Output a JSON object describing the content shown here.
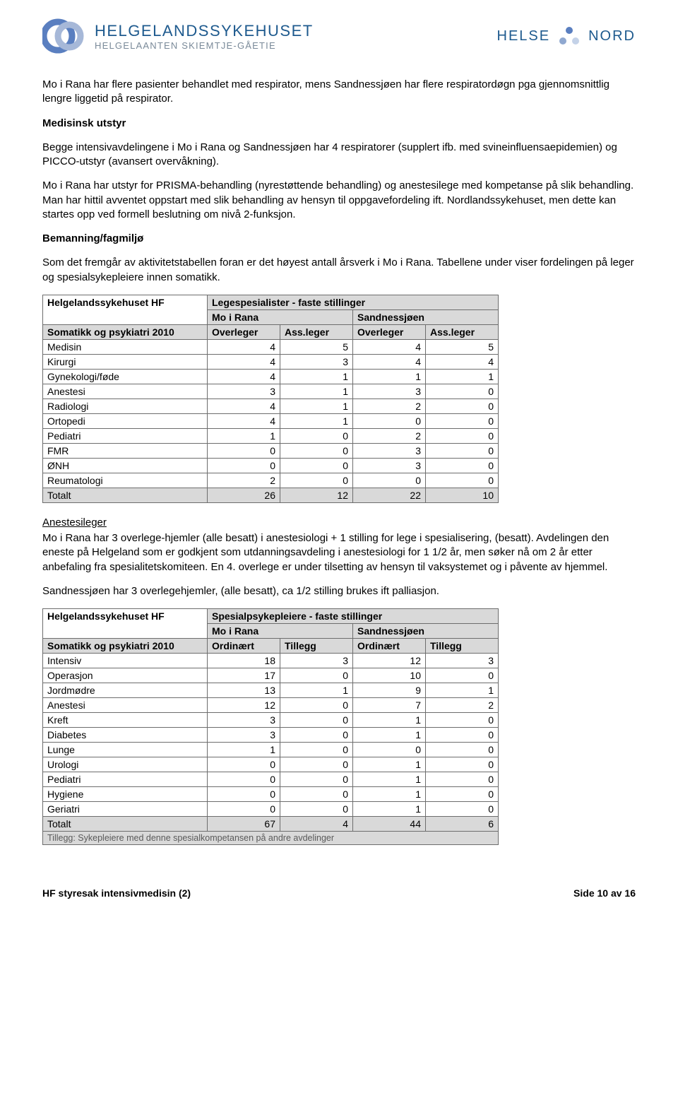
{
  "header": {
    "left_title": "HELGELANDSSYKEHUSET",
    "left_sub": "HELGELAANTEN SKIEMTJE-GÅETIE",
    "right_left": "HELSE",
    "right_right": "NORD",
    "logo_colors": {
      "outer": "#5a7fc0",
      "inner": "#a6b8d8"
    },
    "dot_colors": {
      "outer": "#5a7fc0",
      "mid": "#8fa8d0",
      "inner": "#c4d2e8"
    }
  },
  "paragraphs": {
    "p1": "Mo i Rana har flere pasienter behandlet med respirator, mens Sandnessjøen har flere respiratordøgn pga gjennomsnittlig lengre liggetid på respirator.",
    "h1": "Medisinsk utstyr",
    "p2": "Begge intensivavdelingene i Mo i Rana og Sandnessjøen har 4 respiratorer (supplert ifb. med svineinfluensaepidemien) og PICCO-utstyr (avansert overvåkning).",
    "p3": "Mo i Rana har utstyr for PRISMA-behandling (nyrestøttende behandling) og anestesilege med kompetanse på slik behandling. Man har hittil avventet oppstart med slik behandling av hensyn til oppgavefordeling ift. Nordlandssykehuset, men dette kan startes opp ved formell beslutning om nivå 2-funksjon.",
    "h2": "Bemanning/fagmiljø",
    "p4": "Som det fremgår av aktivitetstabellen foran er det høyest antall årsverk i Mo i Rana. Tabellene under viser fordelingen på leger og spesialsykepleiere innen somatikk.",
    "h3": "Anestesileger",
    "p5": "Mo i Rana har 3 overlege-hjemler (alle besatt) i anestesiologi + 1 stilling for lege i spesialisering, (besatt). Avdelingen den eneste på Helgeland som er godkjent som utdanningsavdeling i anestesiologi for 1 1/2 år, men søker nå om 2 år etter anbefaling fra spesialitetskomiteen. En 4. overlege er under tilsetting av hensyn til vaksystemet og i påvente av hjemmel.",
    "p6": "Sandnessjøen har 3 overlegehjemler, (alle besatt), ca 1/2 stilling brukes ift palliasjon."
  },
  "table1": {
    "top_header": "Legespesialister - faste stillinger",
    "left_header1": "Helgelandssykehuset HF",
    "left_header2": "Somatikk og psykiatri 2010",
    "loc1": "Mo i Rana",
    "loc2": "Sandnessjøen",
    "col1": "Overleger",
    "col2": "Ass.leger",
    "col3": "Overleger",
    "col4": "Ass.leger",
    "rows": [
      {
        "label": "Medisin",
        "v": [
          4,
          5,
          4,
          5
        ]
      },
      {
        "label": "Kirurgi",
        "v": [
          4,
          3,
          4,
          4
        ]
      },
      {
        "label": "Gynekologi/føde",
        "v": [
          4,
          1,
          1,
          1
        ]
      },
      {
        "label": "Anestesi",
        "v": [
          3,
          1,
          3,
          0
        ]
      },
      {
        "label": "Radiologi",
        "v": [
          4,
          1,
          2,
          0
        ]
      },
      {
        "label": "Ortopedi",
        "v": [
          4,
          1,
          0,
          0
        ]
      },
      {
        "label": "Pediatri",
        "v": [
          1,
          0,
          2,
          0
        ]
      },
      {
        "label": "FMR",
        "v": [
          0,
          0,
          3,
          0
        ]
      },
      {
        "label": "ØNH",
        "v": [
          0,
          0,
          3,
          0
        ]
      },
      {
        "label": "Reumatologi",
        "v": [
          2,
          0,
          0,
          0
        ]
      }
    ],
    "total_label": "Totalt",
    "totals": [
      26,
      12,
      22,
      10
    ]
  },
  "table2": {
    "top_header": "Spesialpsykepleiere - faste stillinger",
    "left_header1": "Helgelandssykehuset HF",
    "left_header2": "Somatikk og psykiatri 2010",
    "loc1": "Mo i Rana",
    "loc2": "Sandnessjøen",
    "col1": "Ordinært",
    "col2": "Tillegg",
    "col3": "Ordinært",
    "col4": "Tillegg",
    "rows": [
      {
        "label": "Intensiv",
        "v": [
          18,
          3,
          12,
          3
        ]
      },
      {
        "label": "Operasjon",
        "v": [
          17,
          0,
          10,
          0
        ]
      },
      {
        "label": "Jordmødre",
        "v": [
          13,
          1,
          9,
          1
        ]
      },
      {
        "label": "Anestesi",
        "v": [
          12,
          0,
          7,
          2
        ]
      },
      {
        "label": "Kreft",
        "v": [
          3,
          0,
          1,
          0
        ]
      },
      {
        "label": "Diabetes",
        "v": [
          3,
          0,
          1,
          0
        ]
      },
      {
        "label": "Lunge",
        "v": [
          1,
          0,
          0,
          0
        ]
      },
      {
        "label": "Urologi",
        "v": [
          0,
          0,
          1,
          0
        ]
      },
      {
        "label": "Pediatri",
        "v": [
          0,
          0,
          1,
          0
        ]
      },
      {
        "label": "Hygiene",
        "v": [
          0,
          0,
          1,
          0
        ]
      },
      {
        "label": "Geriatri",
        "v": [
          0,
          0,
          1,
          0
        ]
      }
    ],
    "total_label": "Totalt",
    "totals": [
      67,
      4,
      44,
      6
    ],
    "footnote": "Tillegg: Sykepleiere med denne spesialkompetansen på andre avdelinger"
  },
  "footer": {
    "left": "HF styresak intensivmedisin (2)",
    "right": "Side 10 av 16"
  },
  "styling": {
    "body_font_size_pt": 11,
    "table_font_size_pt": 10,
    "table_header_bg": "#d9d9d9",
    "table_border_color": "#6d6d6d",
    "text_color": "#000000",
    "background_color": "#ffffff"
  }
}
